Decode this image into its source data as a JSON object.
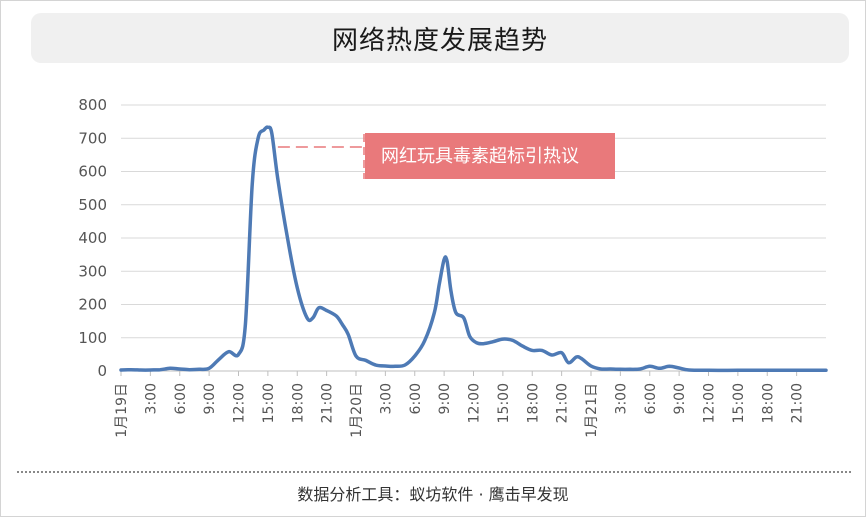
{
  "chart_data": {
    "type": "line",
    "title": "网络热度发展趋势",
    "ylim": [
      0,
      800
    ],
    "y_ticks": [
      0,
      100,
      200,
      300,
      400,
      500,
      600,
      700,
      800
    ],
    "grid": true,
    "x_range_hours": [
      0,
      72
    ],
    "x_ticks": [
      {
        "h": 0,
        "label": "1月19日"
      },
      {
        "h": 3,
        "label": "3:00"
      },
      {
        "h": 6,
        "label": "6:00"
      },
      {
        "h": 9,
        "label": "9:00"
      },
      {
        "h": 12,
        "label": "12:00"
      },
      {
        "h": 15,
        "label": "15:00"
      },
      {
        "h": 18,
        "label": "18:00"
      },
      {
        "h": 21,
        "label": "21:00"
      },
      {
        "h": 24,
        "label": "1月20日"
      },
      {
        "h": 27,
        "label": "3:00"
      },
      {
        "h": 30,
        "label": "6:00"
      },
      {
        "h": 33,
        "label": "9:00"
      },
      {
        "h": 36,
        "label": "12:00"
      },
      {
        "h": 39,
        "label": "15:00"
      },
      {
        "h": 42,
        "label": "18:00"
      },
      {
        "h": 45,
        "label": "21:00"
      },
      {
        "h": 48,
        "label": "1月21日"
      },
      {
        "h": 51,
        "label": "3:00"
      },
      {
        "h": 54,
        "label": "6:00"
      },
      {
        "h": 57,
        "label": "9:00"
      },
      {
        "h": 60,
        "label": "12:00"
      },
      {
        "h": 63,
        "label": "15:00"
      },
      {
        "h": 66,
        "label": "18:00"
      },
      {
        "h": 69,
        "label": "21:00"
      }
    ],
    "series": [
      {
        "color": "#4e7ab5",
        "points": [
          [
            0,
            3
          ],
          [
            1,
            4
          ],
          [
            2,
            3
          ],
          [
            3,
            3
          ],
          [
            4,
            4
          ],
          [
            5,
            8
          ],
          [
            6,
            6
          ],
          [
            7,
            4
          ],
          [
            8,
            5
          ],
          [
            9,
            8
          ],
          [
            10,
            35
          ],
          [
            11,
            58
          ],
          [
            12,
            50
          ],
          [
            12.7,
            140
          ],
          [
            13.4,
            560
          ],
          [
            14,
            700
          ],
          [
            14.6,
            725
          ],
          [
            15,
            733
          ],
          [
            15.4,
            715
          ],
          [
            16,
            580
          ],
          [
            17,
            400
          ],
          [
            18,
            250
          ],
          [
            19,
            160
          ],
          [
            19.6,
            160
          ],
          [
            20.2,
            190
          ],
          [
            21,
            182
          ],
          [
            22,
            165
          ],
          [
            22.6,
            140
          ],
          [
            23.2,
            110
          ],
          [
            24,
            45
          ],
          [
            25,
            32
          ],
          [
            26,
            18
          ],
          [
            27,
            15
          ],
          [
            28,
            14
          ],
          [
            29,
            18
          ],
          [
            30,
            45
          ],
          [
            31,
            90
          ],
          [
            32,
            175
          ],
          [
            32.5,
            260
          ],
          [
            33,
            335
          ],
          [
            33.3,
            330
          ],
          [
            33.7,
            240
          ],
          [
            34.2,
            175
          ],
          [
            35,
            160
          ],
          [
            35.6,
            105
          ],
          [
            36.3,
            85
          ],
          [
            37,
            82
          ],
          [
            38,
            88
          ],
          [
            39,
            96
          ],
          [
            40,
            92
          ],
          [
            41,
            75
          ],
          [
            42,
            62
          ],
          [
            43,
            62
          ],
          [
            44,
            48
          ],
          [
            45,
            55
          ],
          [
            45.7,
            25
          ],
          [
            46.5,
            42
          ],
          [
            47,
            38
          ],
          [
            48,
            15
          ],
          [
            49,
            6
          ],
          [
            50,
            6
          ],
          [
            51,
            5
          ],
          [
            52,
            5
          ],
          [
            53,
            6
          ],
          [
            54,
            14
          ],
          [
            55,
            8
          ],
          [
            56,
            14
          ],
          [
            57,
            9
          ],
          [
            58,
            3
          ],
          [
            60,
            2
          ],
          [
            63,
            2
          ],
          [
            66,
            2
          ],
          [
            69,
            2
          ],
          [
            72,
            2
          ]
        ]
      }
    ],
    "annotation": {
      "text": "网红玩具毒素超标引热议",
      "color": "#e9797b",
      "points_to_hour": 15
    }
  },
  "footer": {
    "text": "数据分析工具：蚁坊软件 · 鹰击早发现"
  }
}
